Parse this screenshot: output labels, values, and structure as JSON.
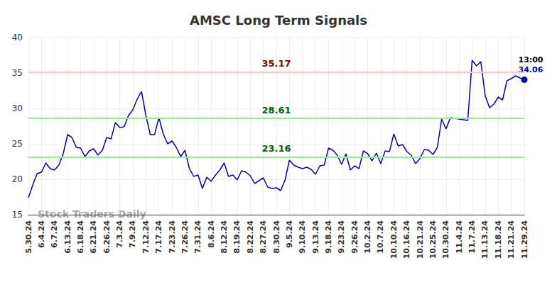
{
  "chart_data": {
    "type": "line",
    "title": "AMSC Long Term Signals",
    "categories": [
      "5.30.24",
      null,
      null,
      "6.4.24",
      null,
      null,
      "6.7.24",
      null,
      null,
      "6.13.24",
      null,
      null,
      "6.18.24",
      null,
      null,
      "6.21.24",
      null,
      null,
      "6.26.24",
      null,
      null,
      "7.3.24",
      null,
      null,
      "7.9.24",
      null,
      null,
      "7.12.24",
      null,
      null,
      "7.17.24",
      null,
      null,
      "7.23.24",
      null,
      null,
      "7.26.24",
      null,
      null,
      "7.31.24",
      null,
      null,
      "8.6.24",
      null,
      null,
      "8.12.24",
      null,
      null,
      "8.19.24",
      null,
      null,
      "8.22.24",
      null,
      null,
      "8.27.24",
      null,
      null,
      "8.30.24",
      null,
      null,
      "9.5.24",
      null,
      null,
      "9.10.24",
      null,
      null,
      "9.13.24",
      null,
      null,
      "9.18.24",
      null,
      null,
      "9.23.24",
      null,
      null,
      "9.26.24",
      null,
      null,
      "10.2.24",
      null,
      null,
      "10.7.24",
      null,
      null,
      "10.10.24",
      null,
      null,
      "10.16.24",
      null,
      null,
      "10.21.24",
      null,
      null,
      "10.25.24",
      null,
      null,
      "10.30.24",
      null,
      null,
      "11.4.24",
      null,
      null,
      "11.7.24",
      null,
      null,
      "11.13.24",
      null,
      null,
      "11.18.24",
      null,
      null,
      "11.21.24",
      null,
      null,
      "11.29.24"
    ],
    "values": [
      17.4,
      19.2,
      20.8,
      21.0,
      22.3,
      21.5,
      21.3,
      22.0,
      23.6,
      26.3,
      25.9,
      24.5,
      24.4,
      23.2,
      24.0,
      24.3,
      23.4,
      24.1,
      25.9,
      25.7,
      28.0,
      27.3,
      27.4,
      29.0,
      29.8,
      31.3,
      32.4,
      29.0,
      26.3,
      26.3,
      28.7,
      26.4,
      25.0,
      25.4,
      24.5,
      23.2,
      24.1,
      21.5,
      20.4,
      20.6,
      18.7,
      20.3,
      19.7,
      20.6,
      21.3,
      22.3,
      20.4,
      20.6,
      19.9,
      21.2,
      21.0,
      20.5,
      19.4,
      19.8,
      20.2,
      18.9,
      18.7,
      18.8,
      18.4,
      19.9,
      22.7,
      22.0,
      21.7,
      21.5,
      21.7,
      21.4,
      20.7,
      21.9,
      22.0,
      24.4,
      24.1,
      23.4,
      22.1,
      23.6,
      21.3,
      21.9,
      21.5,
      24.0,
      23.6,
      22.6,
      23.7,
      22.2,
      24.0,
      23.9,
      26.4,
      24.7,
      24.9,
      23.9,
      23.4,
      22.2,
      22.9,
      24.2,
      24.1,
      23.5,
      24.5,
      28.5,
      27.1,
      28.7,
      28.6,
      28.5,
      28.4,
      28.3,
      36.8,
      36.0,
      36.6,
      31.8,
      30.1,
      30.6,
      31.6,
      31.2,
      33.9,
      34.2,
      34.6,
      34.3,
      34.06
    ],
    "color": "#0000cc",
    "ylim": [
      15,
      40
    ],
    "yticks": [
      15,
      20,
      25,
      30,
      35,
      40
    ],
    "grid": true,
    "annotations": [
      {
        "value": 35.17,
        "color": "#8b0000"
      },
      {
        "value": 28.61,
        "color": "#006400"
      },
      {
        "value": 23.16,
        "color": "#006400"
      }
    ],
    "last_label": "13:00",
    "watermark": "Stock Traders Daily"
  }
}
